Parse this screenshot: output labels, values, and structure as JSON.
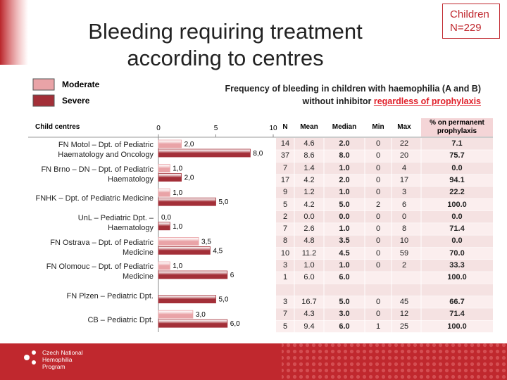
{
  "slide": {
    "title_lines": [
      "Bleeding requiring treatment",
      "according to centres"
    ],
    "badge_lines": [
      "Children",
      "N=229"
    ],
    "subtitle_line1": "Frequency of bleeding in children with haemophilia (A and B)",
    "subtitle_line2": "without inhibitor",
    "subtitle_highlight": "regardless of prophylaxis",
    "logo_lines": [
      "Czech National",
      "Hemophilia",
      "Program"
    ]
  },
  "chart_data": {
    "type": "bar",
    "orientation": "horizontal",
    "category_header": "Child centres",
    "categories": [
      "FN Motol – Dpt. of Pediatric Haematology and Oncology",
      "FN Brno – DN – Dpt. of Pediatric Haematology",
      "FNHK – Dpt. of Pediatric Medicine",
      "UnL – Pediatric Dpt. – Haematology",
      "FN Ostrava – Dpt. of Pediatric Medicine",
      "FN Olomouc – Dpt. of Pediatric Medicine",
      "FN Plzen – Pediatric Dpt.",
      "CB – Pediatric Dpt."
    ],
    "series": [
      {
        "name": "Moderate",
        "color": "#e9a3a7",
        "values": [
          2.0,
          1.0,
          1.0,
          0.0,
          3.5,
          1.0,
          null,
          3.0
        ],
        "value_labels": [
          "2,0",
          "1,0",
          "1,0",
          "0,0",
          "3,5",
          "1,0",
          null,
          "3,0"
        ]
      },
      {
        "name": "Severe",
        "color": "#a32f38",
        "values": [
          8.0,
          2.0,
          5.0,
          1.0,
          4.5,
          6,
          5.0,
          6.0
        ],
        "value_labels": [
          "8,0",
          "2,0",
          "5,0",
          "1,0",
          "4,5",
          "6",
          "5,0",
          "6,0"
        ]
      }
    ],
    "xlim": [
      0,
      10
    ],
    "xticks": [
      0,
      5,
      10
    ],
    "grid": false
  },
  "table": {
    "columns": [
      "N",
      "Mean",
      "Median",
      "Min",
      "Max",
      "% on permanent prophylaxis"
    ],
    "rows": [
      [
        "14",
        "4.6",
        "2.0",
        "0",
        "22",
        "7.1"
      ],
      [
        "37",
        "8.6",
        "8.0",
        "0",
        "20",
        "75.7"
      ],
      [
        "7",
        "1.4",
        "1.0",
        "0",
        "4",
        "0.0"
      ],
      [
        "17",
        "4.2",
        "2.0",
        "0",
        "17",
        "94.1"
      ],
      [
        "9",
        "1.2",
        "1.0",
        "0",
        "3",
        "22.2"
      ],
      [
        "5",
        "4.2",
        "5.0",
        "2",
        "6",
        "100.0"
      ],
      [
        "2",
        "0.0",
        "0.0",
        "0",
        "0",
        "0.0"
      ],
      [
        "7",
        "2.6",
        "1.0",
        "0",
        "8",
        "71.4"
      ],
      [
        "8",
        "4.8",
        "3.5",
        "0",
        "10",
        "0.0"
      ],
      [
        "10",
        "11.2",
        "4.5",
        "0",
        "59",
        "70.0"
      ],
      [
        "3",
        "1.0",
        "1.0",
        "0",
        "2",
        "33.3"
      ],
      [
        "1",
        "6.0",
        "6.0",
        null,
        null,
        "100.0"
      ],
      [
        null,
        null,
        null,
        null,
        null,
        null
      ],
      [
        "3",
        "16.7",
        "5.0",
        "0",
        "45",
        "66.7"
      ],
      [
        "7",
        "4.3",
        "3.0",
        "0",
        "12",
        "71.4"
      ],
      [
        "5",
        "9.4",
        "6.0",
        "1",
        "25",
        "100.0"
      ]
    ]
  }
}
